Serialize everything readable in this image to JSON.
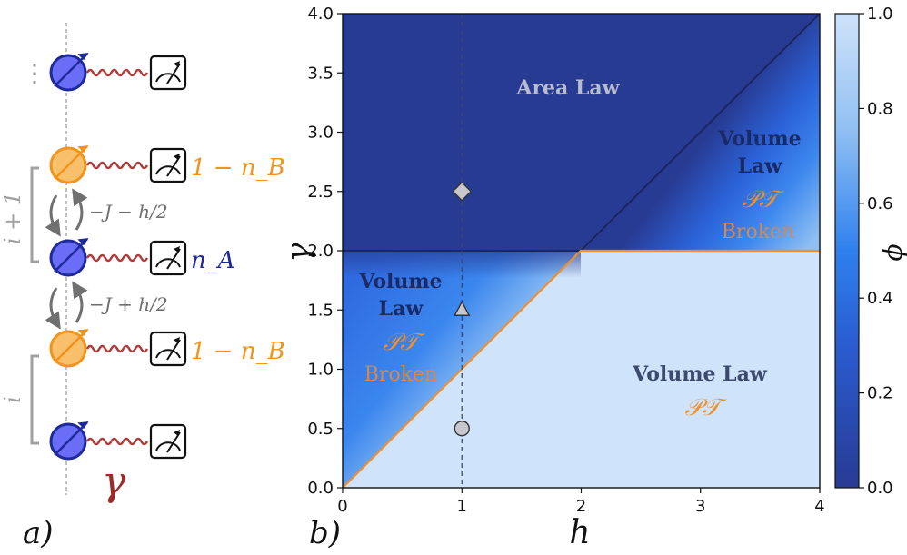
{
  "panel_a": {
    "label": "a)",
    "ellipsis": "⋮",
    "site_labels": {
      "i_plus_1": "i + 1",
      "i": "i"
    },
    "hopping_upper": "−J − h/2",
    "hopping_lower": "−J + h/2",
    "measurement_labels": {
      "top": "1 − n_B",
      "middle": "n_A",
      "bottom": "1 − n_B"
    },
    "decay_rate": "γ",
    "colors": {
      "site_A": "#6a6ef7",
      "site_A_edge": "#1e2a9a",
      "site_B": "#f8c06a",
      "site_B_edge": "#f0941e",
      "wave": "#b03a3a",
      "bracket": "#a0a0a0",
      "hop_arrow": "#707070"
    }
  },
  "panel_b": {
    "label": "b)",
    "colorbar": {
      "label": "ϕ",
      "ticks": [
        "0.0",
        "0.2",
        "0.4",
        "0.6",
        "0.8",
        "1.0"
      ],
      "low_color": "#283b93",
      "high_color": "#cfe3fa"
    }
  },
  "chart_data": {
    "type": "heatmap",
    "xlabel": "h",
    "ylabel": "γ",
    "xlim": [
      0,
      4
    ],
    "ylim": [
      0,
      4
    ],
    "x_ticks": [
      "0",
      "1",
      "2",
      "3",
      "4"
    ],
    "y_ticks": [
      "0.0",
      "0.5",
      "1.0",
      "1.5",
      "2.0",
      "2.5",
      "3.0",
      "3.5",
      "4.0"
    ],
    "color_label": "ϕ",
    "color_range": [
      0.0,
      1.0
    ],
    "boundaries": [
      {
        "name": "orange",
        "points": [
          [
            0,
            0
          ],
          [
            2,
            2
          ],
          [
            4,
            2
          ]
        ]
      },
      {
        "name": "navy",
        "points": [
          [
            0,
            2
          ],
          [
            2,
            2
          ],
          [
            4,
            4
          ]
        ]
      }
    ],
    "vertical_guide_x": 1,
    "markers": [
      {
        "shape": "diamond",
        "x": 1,
        "y": 2.5
      },
      {
        "shape": "triangle",
        "x": 1,
        "y": 1.5
      },
      {
        "shape": "circle",
        "x": 1,
        "y": 0.5
      }
    ],
    "regions": [
      {
        "title": "Area Law",
        "pt": "",
        "note": ""
      },
      {
        "title": "Volume Law",
        "pt": "𝒫𝒯",
        "note": "Broken"
      },
      {
        "title": "Volume Law",
        "pt": "𝒫𝒯",
        "note": "Broken"
      },
      {
        "title": "Volume Law",
        "pt": "𝒫𝒯",
        "note": ""
      }
    ],
    "region_title_lines": [
      [
        "Volume",
        "Law"
      ],
      [
        "Volume",
        "Law"
      ]
    ]
  }
}
